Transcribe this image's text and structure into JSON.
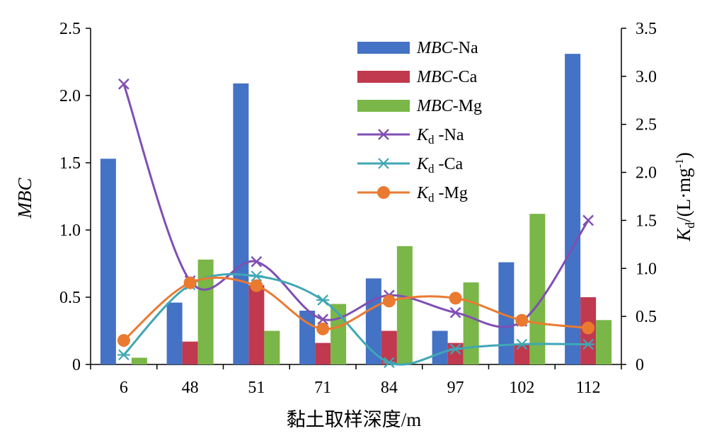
{
  "chart_data": {
    "type": "bar",
    "categories": [
      "6",
      "48",
      "51",
      "71",
      "84",
      "97",
      "102",
      "112"
    ],
    "xlabel": "黏土取样深度/m",
    "ylabel_left": "MBC",
    "ylabel_right": {
      "main": "K",
      "sub": "d",
      "unit": "/(L·mg",
      "sup": "-1",
      "close": ")"
    },
    "ylim_left": [
      0,
      2.5
    ],
    "ylim_right": [
      0,
      3.5
    ],
    "yticks_left": [
      "0",
      "0.5",
      "1.0",
      "1.5",
      "2.0",
      "2.5"
    ],
    "yticks_right": [
      "0",
      "0.5",
      "1.0",
      "1.5",
      "2.0",
      "2.5",
      "3.0",
      "3.5"
    ],
    "bar_series": [
      {
        "name_italic": "MBC",
        "name_rest": "-Na",
        "color": "#4472C4",
        "values": [
          1.53,
          0.46,
          2.09,
          0.4,
          0.64,
          0.25,
          0.76,
          2.31
        ]
      },
      {
        "name_italic": "MBC",
        "name_rest": "-Ca",
        "color": "#C0394F",
        "values": [
          0.0,
          0.17,
          0.59,
          0.16,
          0.25,
          0.16,
          0.15,
          0.5
        ]
      },
      {
        "name_italic": "MBC",
        "name_rest": "-Mg",
        "color": "#7AB648",
        "values": [
          0.05,
          0.78,
          0.25,
          0.45,
          0.88,
          0.61,
          1.12,
          0.33
        ]
      }
    ],
    "line_series": [
      {
        "name_main": "K",
        "name_sub": "d",
        "name_rest": " -Na",
        "color": "#7F4FB3",
        "marker": "x",
        "values": [
          2.92,
          0.87,
          1.07,
          0.47,
          0.72,
          0.54,
          0.45,
          1.5
        ]
      },
      {
        "name_main": "K",
        "name_sub": "d",
        "name_rest": " -Ca",
        "color": "#3FA7B5",
        "marker": "asterisk",
        "values": [
          0.1,
          0.83,
          0.92,
          0.67,
          0.02,
          0.16,
          0.21,
          0.21
        ]
      },
      {
        "name_main": "K",
        "name_sub": "d",
        "name_rest": " -Mg",
        "color": "#EA7A30",
        "marker": "circle",
        "values": [
          0.25,
          0.85,
          0.82,
          0.37,
          0.66,
          0.69,
          0.46,
          0.38
        ]
      }
    ],
    "legend_position": "top-right"
  }
}
